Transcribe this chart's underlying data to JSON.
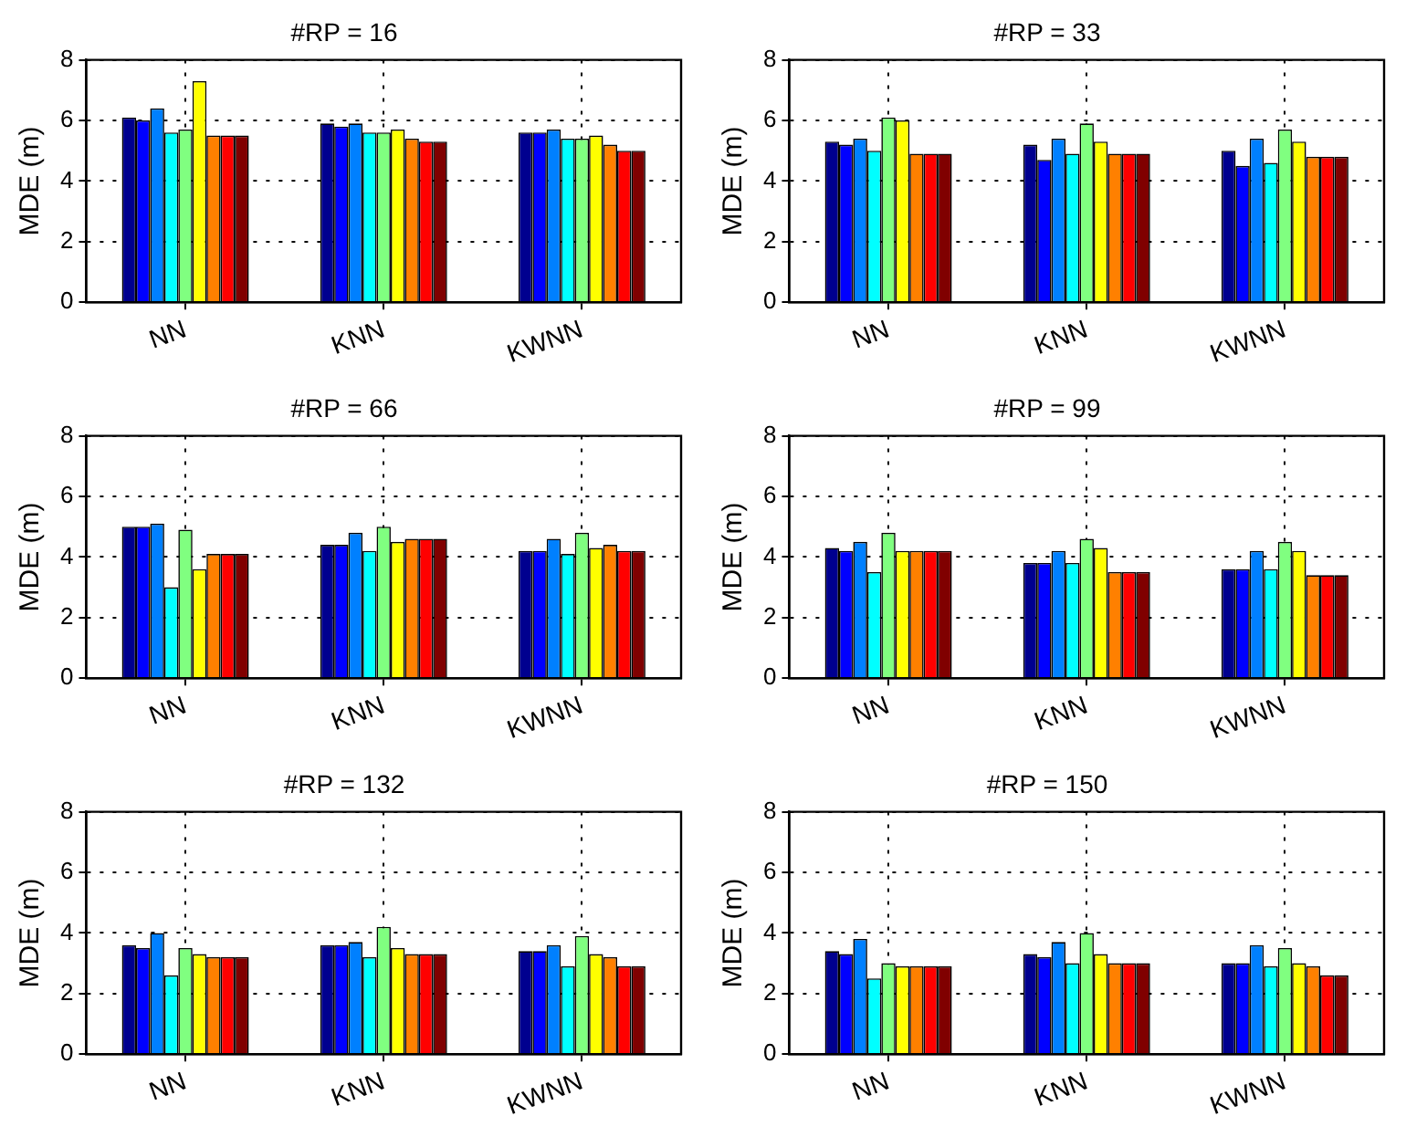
{
  "chart_data": [
    {
      "type": "bar",
      "title": "#RP = 16",
      "ylabel": "MDE (m)",
      "categories": [
        "NN",
        "KNN",
        "KWNN"
      ],
      "ylim": [
        0,
        8
      ],
      "yticks": [
        0,
        2,
        4,
        6,
        8
      ],
      "grid": true,
      "legend": false,
      "series": [
        {
          "color": "#00008f",
          "values": [
            6.1,
            5.9,
            5.6
          ]
        },
        {
          "color": "#0000ff",
          "values": [
            6.0,
            5.8,
            5.6
          ]
        },
        {
          "color": "#0080ff",
          "values": [
            6.4,
            5.9,
            5.7
          ]
        },
        {
          "color": "#00ffff",
          "values": [
            5.6,
            5.6,
            5.4
          ]
        },
        {
          "color": "#80ff80",
          "values": [
            5.7,
            5.6,
            5.4
          ]
        },
        {
          "color": "#ffff00",
          "values": [
            7.3,
            5.7,
            5.5
          ]
        },
        {
          "color": "#ff8000",
          "values": [
            5.5,
            5.4,
            5.2
          ]
        },
        {
          "color": "#ff0000",
          "values": [
            5.5,
            5.3,
            5.0
          ]
        },
        {
          "color": "#800000",
          "values": [
            5.5,
            5.3,
            5.0
          ]
        }
      ]
    },
    {
      "type": "bar",
      "title": "#RP = 33",
      "ylabel": "MDE (m)",
      "categories": [
        "NN",
        "KNN",
        "KWNN"
      ],
      "ylim": [
        0,
        8
      ],
      "yticks": [
        0,
        2,
        4,
        6,
        8
      ],
      "grid": true,
      "legend": false,
      "series": [
        {
          "color": "#00008f",
          "values": [
            5.3,
            5.2,
            5.0
          ]
        },
        {
          "color": "#0000ff",
          "values": [
            5.2,
            4.7,
            4.5
          ]
        },
        {
          "color": "#0080ff",
          "values": [
            5.4,
            5.4,
            5.4
          ]
        },
        {
          "color": "#00ffff",
          "values": [
            5.0,
            4.9,
            4.6
          ]
        },
        {
          "color": "#80ff80",
          "values": [
            6.1,
            5.9,
            5.7
          ]
        },
        {
          "color": "#ffff00",
          "values": [
            6.0,
            5.3,
            5.3
          ]
        },
        {
          "color": "#ff8000",
          "values": [
            4.9,
            4.9,
            4.8
          ]
        },
        {
          "color": "#ff0000",
          "values": [
            4.9,
            4.9,
            4.8
          ]
        },
        {
          "color": "#800000",
          "values": [
            4.9,
            4.9,
            4.8
          ]
        }
      ]
    },
    {
      "type": "bar",
      "title": "#RP = 66",
      "ylabel": "MDE (m)",
      "categories": [
        "NN",
        "KNN",
        "KWNN"
      ],
      "ylim": [
        0,
        8
      ],
      "yticks": [
        0,
        2,
        4,
        6,
        8
      ],
      "grid": true,
      "legend": false,
      "series": [
        {
          "color": "#00008f",
          "values": [
            5.0,
            4.4,
            4.2
          ]
        },
        {
          "color": "#0000ff",
          "values": [
            5.0,
            4.4,
            4.2
          ]
        },
        {
          "color": "#0080ff",
          "values": [
            5.1,
            4.8,
            4.6
          ]
        },
        {
          "color": "#00ffff",
          "values": [
            3.0,
            4.2,
            4.1
          ]
        },
        {
          "color": "#80ff80",
          "values": [
            4.9,
            5.0,
            4.8
          ]
        },
        {
          "color": "#ffff00",
          "values": [
            3.6,
            4.5,
            4.3
          ]
        },
        {
          "color": "#ff8000",
          "values": [
            4.1,
            4.6,
            4.4
          ]
        },
        {
          "color": "#ff0000",
          "values": [
            4.1,
            4.6,
            4.2
          ]
        },
        {
          "color": "#800000",
          "values": [
            4.1,
            4.6,
            4.2
          ]
        }
      ]
    },
    {
      "type": "bar",
      "title": "#RP = 99",
      "ylabel": "MDE (m)",
      "categories": [
        "NN",
        "KNN",
        "KWNN"
      ],
      "ylim": [
        0,
        8
      ],
      "yticks": [
        0,
        2,
        4,
        6,
        8
      ],
      "grid": true,
      "legend": false,
      "series": [
        {
          "color": "#00008f",
          "values": [
            4.3,
            3.8,
            3.6
          ]
        },
        {
          "color": "#0000ff",
          "values": [
            4.2,
            3.8,
            3.6
          ]
        },
        {
          "color": "#0080ff",
          "values": [
            4.5,
            4.2,
            4.2
          ]
        },
        {
          "color": "#00ffff",
          "values": [
            3.5,
            3.8,
            3.6
          ]
        },
        {
          "color": "#80ff80",
          "values": [
            4.8,
            4.6,
            4.5
          ]
        },
        {
          "color": "#ffff00",
          "values": [
            4.2,
            4.3,
            4.2
          ]
        },
        {
          "color": "#ff8000",
          "values": [
            4.2,
            3.5,
            3.4
          ]
        },
        {
          "color": "#ff0000",
          "values": [
            4.2,
            3.5,
            3.4
          ]
        },
        {
          "color": "#800000",
          "values": [
            4.2,
            3.5,
            3.4
          ]
        }
      ]
    },
    {
      "type": "bar",
      "title": "#RP = 132",
      "ylabel": "MDE (m)",
      "categories": [
        "NN",
        "KNN",
        "KWNN"
      ],
      "ylim": [
        0,
        8
      ],
      "yticks": [
        0,
        2,
        4,
        6,
        8
      ],
      "grid": true,
      "legend": false,
      "series": [
        {
          "color": "#00008f",
          "values": [
            3.6,
            3.6,
            3.4
          ]
        },
        {
          "color": "#0000ff",
          "values": [
            3.5,
            3.6,
            3.4
          ]
        },
        {
          "color": "#0080ff",
          "values": [
            4.0,
            3.7,
            3.6
          ]
        },
        {
          "color": "#00ffff",
          "values": [
            2.6,
            3.2,
            2.9
          ]
        },
        {
          "color": "#80ff80",
          "values": [
            3.5,
            4.2,
            3.9
          ]
        },
        {
          "color": "#ffff00",
          "values": [
            3.3,
            3.5,
            3.3
          ]
        },
        {
          "color": "#ff8000",
          "values": [
            3.2,
            3.3,
            3.2
          ]
        },
        {
          "color": "#ff0000",
          "values": [
            3.2,
            3.3,
            2.9
          ]
        },
        {
          "color": "#800000",
          "values": [
            3.2,
            3.3,
            2.9
          ]
        }
      ]
    },
    {
      "type": "bar",
      "title": "#RP = 150",
      "ylabel": "MDE (m)",
      "categories": [
        "NN",
        "KNN",
        "KWNN"
      ],
      "ylim": [
        0,
        8
      ],
      "yticks": [
        0,
        2,
        4,
        6,
        8
      ],
      "grid": true,
      "legend": false,
      "series": [
        {
          "color": "#00008f",
          "values": [
            3.4,
            3.3,
            3.0
          ]
        },
        {
          "color": "#0000ff",
          "values": [
            3.3,
            3.2,
            3.0
          ]
        },
        {
          "color": "#0080ff",
          "values": [
            3.8,
            3.7,
            3.6
          ]
        },
        {
          "color": "#00ffff",
          "values": [
            2.5,
            3.0,
            2.9
          ]
        },
        {
          "color": "#80ff80",
          "values": [
            3.0,
            4.0,
            3.5
          ]
        },
        {
          "color": "#ffff00",
          "values": [
            2.9,
            3.3,
            3.0
          ]
        },
        {
          "color": "#ff8000",
          "values": [
            2.9,
            3.0,
            2.9
          ]
        },
        {
          "color": "#ff0000",
          "values": [
            2.9,
            3.0,
            2.6
          ]
        },
        {
          "color": "#800000",
          "values": [
            2.9,
            3.0,
            2.6
          ]
        }
      ]
    }
  ]
}
